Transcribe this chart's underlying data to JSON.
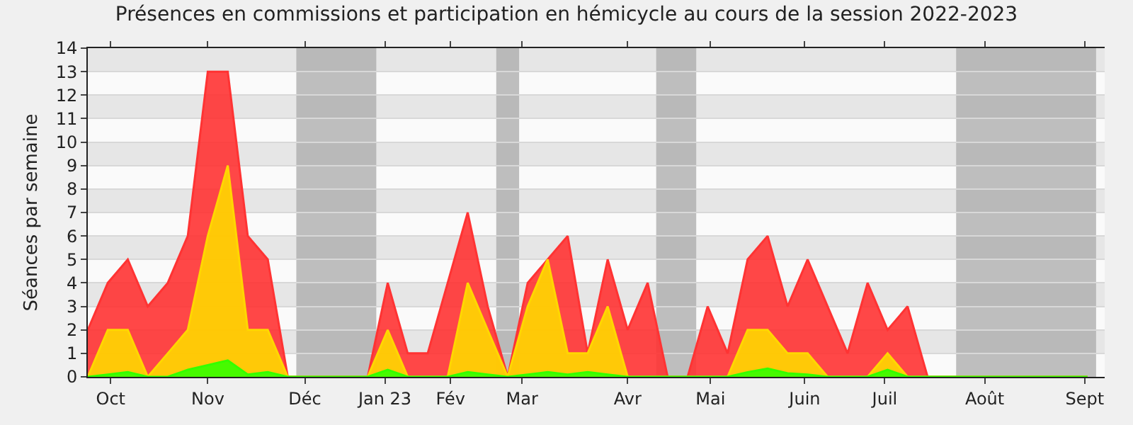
{
  "chart_data": {
    "type": "area",
    "title": "Présences en commissions et participation en hémicycle au cours de la session 2022-2023",
    "ylabel": "Séances par semaine",
    "x": [
      "2022-10-03",
      "2022-10-10",
      "2022-10-17",
      "2022-10-24",
      "2022-10-31",
      "2022-11-07",
      "2022-11-14",
      "2022-11-21",
      "2022-11-28",
      "2022-12-05",
      "2022-12-12",
      "2022-12-19",
      "2022-12-26",
      "2023-01-02",
      "2023-01-09",
      "2023-01-16",
      "2023-01-23",
      "2023-01-30",
      "2023-02-06",
      "2023-02-13",
      "2023-02-20",
      "2023-02-27",
      "2023-03-06",
      "2023-03-13",
      "2023-03-20",
      "2023-03-27",
      "2023-04-03",
      "2023-04-10",
      "2023-04-17",
      "2023-04-24",
      "2023-05-01",
      "2023-05-08",
      "2023-05-15",
      "2023-05-22",
      "2023-05-29",
      "2023-06-05",
      "2023-06-12",
      "2023-06-19",
      "2023-06-26",
      "2023-07-03",
      "2023-07-10",
      "2023-07-17",
      "2023-07-24",
      "2023-07-31",
      "2023-08-07",
      "2023-08-14",
      "2023-08-21",
      "2023-08-28",
      "2023-09-04",
      "2023-09-11",
      "2023-09-18"
    ],
    "series": [
      {
        "color": "#ff3333",
        "values": [
          2,
          4,
          5,
          3,
          4,
          6,
          13,
          13,
          6,
          5,
          0,
          0,
          0,
          0,
          0,
          4,
          1,
          1,
          4,
          7,
          3,
          0,
          4,
          5,
          6,
          1,
          5,
          2,
          4,
          0,
          0,
          3,
          1,
          5,
          6,
          3,
          5,
          3,
          1,
          4,
          2,
          3,
          0,
          0,
          0,
          0,
          0,
          0,
          0,
          0,
          0
        ]
      },
      {
        "color": "#ffd700",
        "values": [
          0,
          2,
          2,
          0,
          1,
          2,
          6,
          9,
          2,
          2,
          0,
          0,
          0,
          0,
          0,
          2,
          0,
          0,
          0,
          4,
          2,
          0,
          3,
          5,
          1,
          1,
          3,
          0,
          0,
          0,
          0,
          0,
          0,
          2,
          2,
          1,
          1,
          0,
          0,
          0,
          1,
          0,
          0,
          0,
          0,
          0,
          0,
          0,
          0,
          0,
          0
        ]
      },
      {
        "color": "#33ff00",
        "values": [
          0,
          0.1,
          0.2,
          0,
          0,
          0.3,
          0.5,
          0.7,
          0.1,
          0.2,
          0,
          0,
          0,
          0,
          0,
          0.3,
          0,
          0,
          0,
          0.2,
          0.1,
          0,
          0.1,
          0.2,
          0.1,
          0.2,
          0.1,
          0,
          0,
          0,
          0,
          0,
          0,
          0.2,
          0.35,
          0.15,
          0.1,
          0,
          0,
          0,
          0.3,
          0,
          0,
          0,
          0,
          0,
          0,
          0,
          0,
          0,
          0
        ]
      }
    ],
    "xlim": [
      "2022-10-03",
      "2023-09-24"
    ],
    "xticks": [
      {
        "value": "2022-10-11",
        "label": "Oct"
      },
      {
        "value": "2022-11-14",
        "label": "Nov"
      },
      {
        "value": "2022-12-18",
        "label": "Déc"
      },
      {
        "value": "2023-01-15",
        "label": "Jan 23"
      },
      {
        "value": "2023-02-07",
        "label": "Fév"
      },
      {
        "value": "2023-03-04",
        "label": "Mar"
      },
      {
        "value": "2023-04-10",
        "label": "Avr"
      },
      {
        "value": "2023-05-09",
        "label": "Mai"
      },
      {
        "value": "2023-06-11",
        "label": "Juin"
      },
      {
        "value": "2023-07-09",
        "label": "Juil"
      },
      {
        "value": "2023-08-13",
        "label": "Août"
      },
      {
        "value": "2023-09-17",
        "label": "Sept"
      }
    ],
    "ylim": [
      0,
      14
    ],
    "yticks": [
      0,
      1,
      2,
      3,
      4,
      5,
      6,
      7,
      8,
      9,
      10,
      11,
      12,
      13,
      14
    ],
    "bands": [
      {
        "axis": "x",
        "from": "2022-12-15",
        "to": "2023-01-12",
        "color": "#aaaaaa"
      },
      {
        "axis": "x",
        "from": "2023-02-23",
        "to": "2023-03-03",
        "color": "#aaaaaa"
      },
      {
        "axis": "x",
        "from": "2023-04-20",
        "to": "2023-05-04",
        "color": "#aaaaaa"
      },
      {
        "axis": "x",
        "from": "2023-08-03",
        "to": "2023-09-21",
        "color": "#aaaaaa"
      }
    ],
    "grid": "y",
    "marker": "none",
    "line_style": "solid"
  }
}
